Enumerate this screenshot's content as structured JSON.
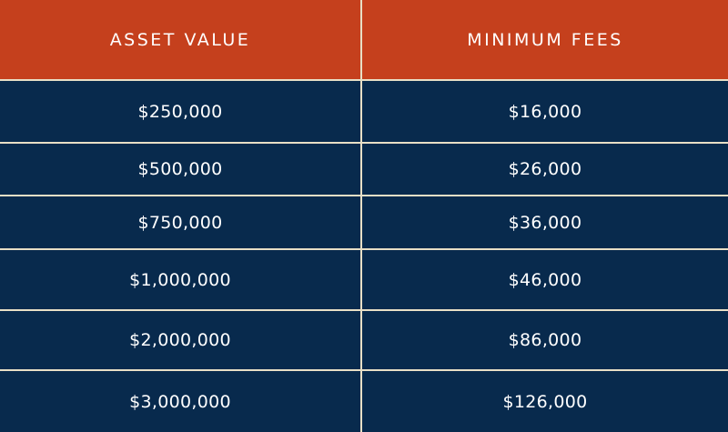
{
  "table": {
    "headers": {
      "asset_value": "ASSET VALUE",
      "minimum_fees": "MINIMUM FEES"
    },
    "rows": [
      {
        "asset_value": "$250,000",
        "minimum_fees": "$16,000"
      },
      {
        "asset_value": "$500,000",
        "minimum_fees": "$26,000"
      },
      {
        "asset_value": "$750,000",
        "minimum_fees": "$36,000"
      },
      {
        "asset_value": "$1,000,000",
        "minimum_fees": "$46,000"
      },
      {
        "asset_value": "$2,000,000",
        "minimum_fees": "$86,000"
      },
      {
        "asset_value": "$3,000,000",
        "minimum_fees": "$126,000"
      }
    ]
  },
  "colors": {
    "header_background": "#c5401d",
    "row_background": "#082a4d",
    "divider": "#e8dfc6",
    "text": "#ffffff"
  }
}
